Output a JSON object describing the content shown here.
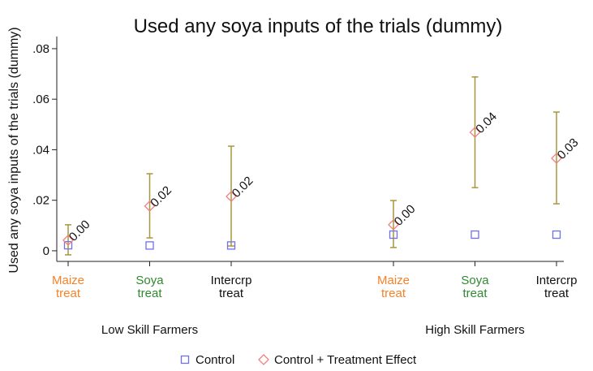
{
  "chart_data": {
    "type": "coefplot",
    "title": "Used any soya inputs of the trials (dummy)",
    "y_label": "Used any soya inputs of the trials (dummy)",
    "groups": [
      {
        "name": "Low Skill Farmers",
        "categories": [
          [
            "Maize",
            "treat"
          ],
          [
            "Soya",
            "treat"
          ],
          [
            "Intercrp",
            "treat"
          ]
        ],
        "category_colors": [
          "#f5822a",
          "#2f8a2f",
          "#111111"
        ]
      },
      {
        "name": "High Skill Farmers",
        "categories": [
          [
            "Maize",
            "treat"
          ],
          [
            "Soya",
            "treat"
          ],
          [
            "Intercrp",
            "treat"
          ]
        ],
        "category_colors": [
          "#f5822a",
          "#2f8a2f",
          "#111111"
        ]
      }
    ],
    "series": [
      {
        "name": "Control",
        "color": "#6f6ff0",
        "marker": "square",
        "values": [
          0.0022,
          0.0021,
          0.0021,
          0.0064,
          0.0064,
          0.0064
        ]
      },
      {
        "name": "Control + Treatment Effect",
        "color": "#f08080",
        "marker": "diamond",
        "values": [
          0.0042,
          0.0177,
          0.0215,
          0.0103,
          0.0469,
          0.0366
        ],
        "ci_low": [
          -0.0016,
          0.0051,
          0.0019,
          0.0013,
          0.025,
          0.0186
        ],
        "ci_high": [
          0.0103,
          0.0305,
          0.0414,
          0.0199,
          0.0688,
          0.0549
        ],
        "ci_color": "#a8963c"
      }
    ],
    "treatment_effects": {
      "values": [
        0.002,
        0.0156,
        0.0194,
        0.0039,
        0.0405,
        0.0302
      ],
      "value_labels": [
        "0.00",
        "0.02",
        "0.02",
        "0.00",
        "0.04",
        "0.03"
      ]
    },
    "ylim": [
      -0.0042,
      0.0848
    ],
    "yticks": [
      0,
      {
        "value": 0.02,
        "label": ".02"
      },
      {
        "value": 0.04,
        "label": ".04"
      },
      {
        "value": 0.06,
        "label": ".06"
      },
      {
        "value": 0.08,
        "label": ".08"
      }
    ]
  }
}
